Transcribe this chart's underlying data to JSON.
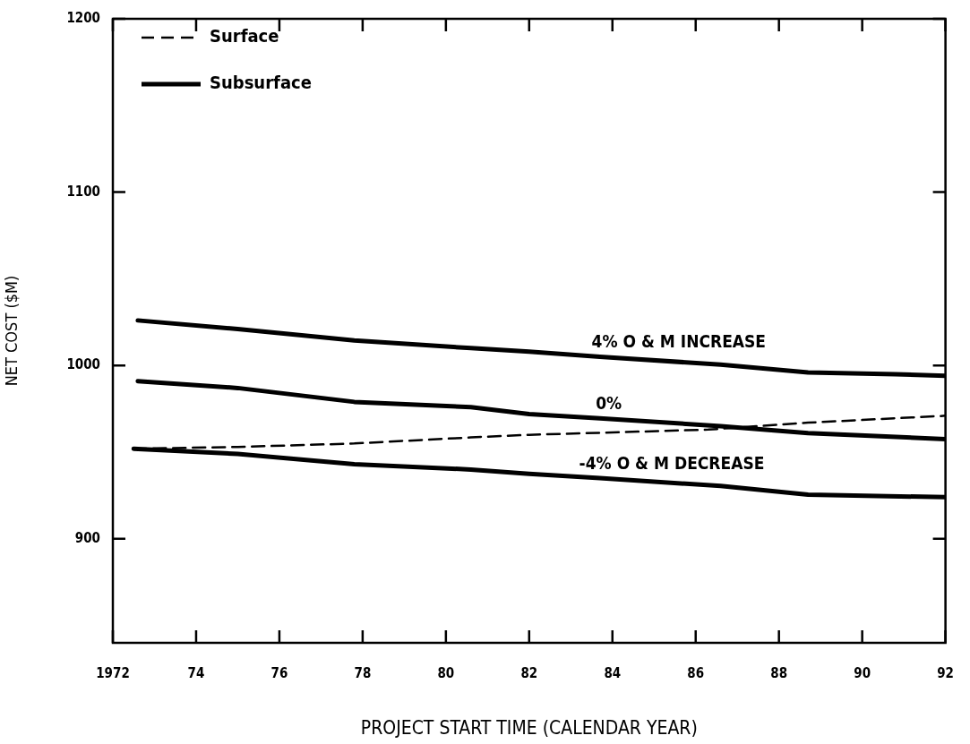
{
  "chart_data": {
    "type": "line",
    "xlabel": "PROJECT START TIME (CALENDAR YEAR)",
    "ylabel": "NET COST ($M)",
    "xlim": [
      1972,
      1992
    ],
    "xticks": [
      1972,
      {
        "value": 1974,
        "label": "74"
      },
      {
        "value": 1976,
        "label": "76"
      },
      {
        "value": 1978,
        "label": "78"
      },
      {
        "value": 1980,
        "label": "80"
      },
      {
        "value": 1982,
        "label": "82"
      },
      {
        "value": 1984,
        "label": "84"
      },
      {
        "value": 1986,
        "label": "86"
      },
      {
        "value": 1988,
        "label": "88"
      },
      {
        "value": 1990,
        "label": "90"
      },
      {
        "value": 1992,
        "label": "92"
      }
    ],
    "ylim": [
      840,
      1200
    ],
    "yticks": [
      900,
      1000,
      1100,
      1200
    ],
    "grid": false,
    "legend": "top left",
    "marker": "none",
    "series": [
      {
        "name": "Surface",
        "color": "#000000",
        "line_style": "dashed",
        "x": [
          1972.5,
          1975,
          1977.8,
          1980.6,
          1982,
          1986.3,
          1988.7,
          1992
        ],
        "values": [
          952,
          953,
          955,
          958.5,
          960,
          963,
          967,
          971
        ]
      },
      {
        "name": "Subsurface",
        "color": "#000000",
        "line_style": "solid",
        "x": [
          1972.6,
          1975,
          1977.8,
          1980.6,
          1982,
          1983.7,
          1986.6,
          1988.7,
          1990.8,
          1992
        ],
        "values": [
          1026,
          1021,
          1014.5,
          1010,
          1008,
          1005,
          1000.5,
          996,
          995,
          994
        ]
      },
      {
        "color": "#000000",
        "line_style": "solid",
        "x": [
          1972.6,
          1975,
          1977.8,
          1980.6,
          1982,
          1983.7,
          1986.6,
          1988.7,
          1992
        ],
        "values": [
          991,
          987,
          979,
          976,
          972,
          969.5,
          965,
          961,
          957.5
        ]
      },
      {
        "color": "#000000",
        "line_style": "solid",
        "x": [
          1972.5,
          1975,
          1977.8,
          1980.6,
          1982,
          1983.7,
          1986.6,
          1988.7,
          1992
        ],
        "values": [
          952,
          949,
          943,
          940,
          937.5,
          935,
          930.5,
          925.5,
          924
        ]
      }
    ],
    "annotations": [
      {
        "text": "4% O & M INCREASE",
        "x": 1983.5,
        "y": 1005
      },
      {
        "text": "0%",
        "x": 1983.6,
        "y": 969.5
      },
      {
        "text": "-4% O & M DECREASE",
        "x": 1983.2,
        "y": 935
      }
    ]
  }
}
